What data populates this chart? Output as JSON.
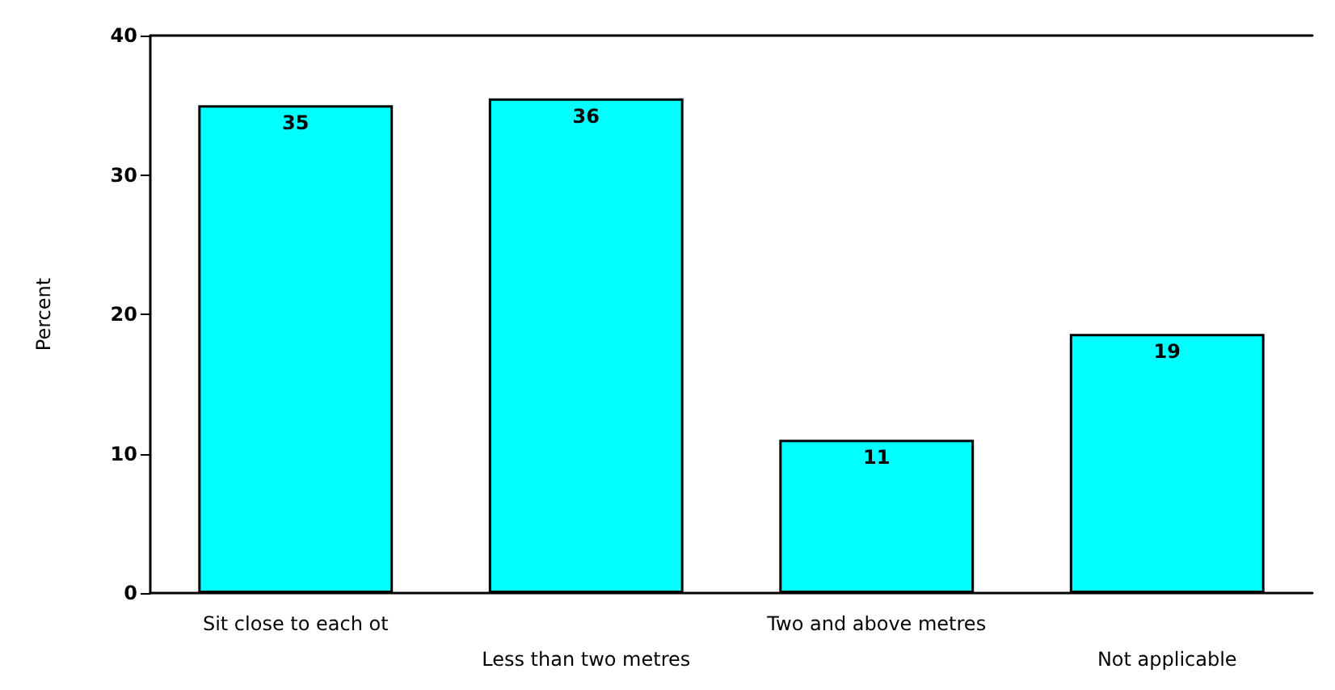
{
  "chart_data": {
    "type": "bar",
    "ylabel": "Percent",
    "categories": [
      "Sit close to each ot",
      "Less than two metres",
      "Two and above metres",
      "Not applicable"
    ],
    "values": [
      35,
      35.5,
      11,
      18.6
    ],
    "value_labels": [
      "35",
      "36",
      "11",
      "19"
    ],
    "color": "#00ffff",
    "ylim": [
      0,
      40
    ],
    "yticks": [
      0,
      10,
      20,
      30,
      40
    ]
  }
}
